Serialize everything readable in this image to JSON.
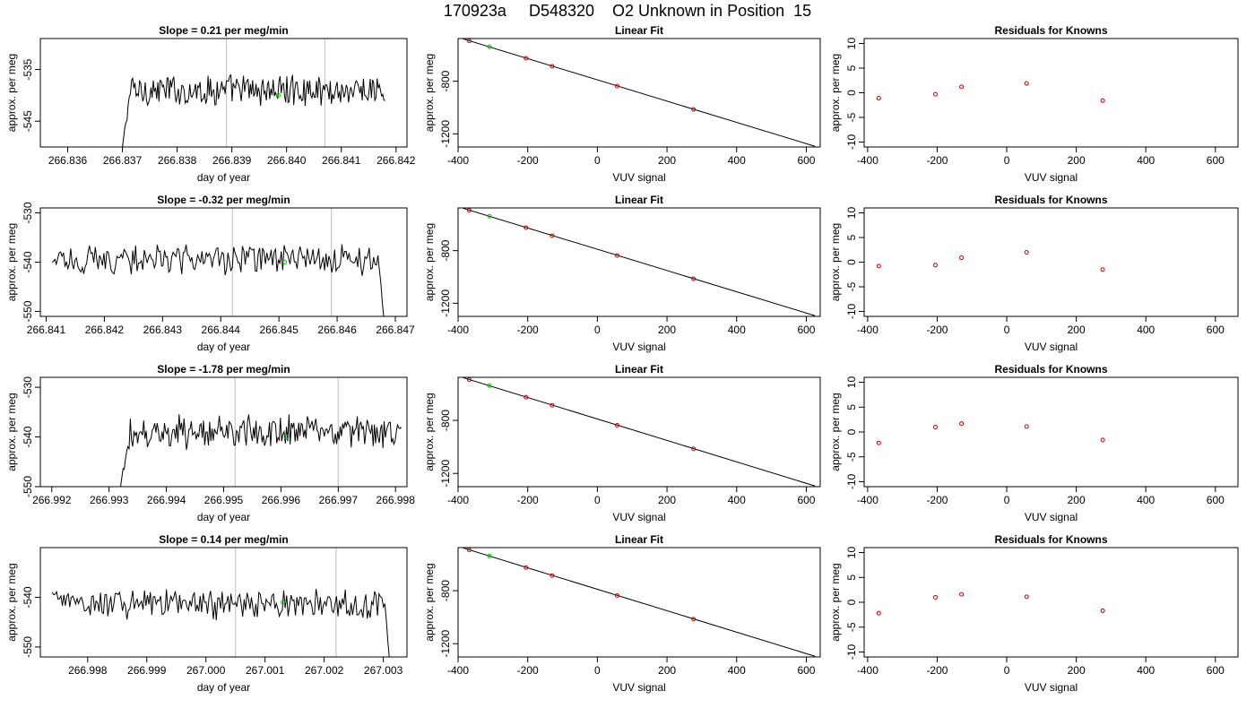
{
  "page_title": "170923a     D548320    O2 Unknown in Position  15",
  "colors": {
    "trace": "#000000",
    "vline": "#c8c8c8",
    "known_point": "#cc0000",
    "unknown_point": "#00cc00",
    "fit_line": "#000000"
  },
  "chart_data": [
    {
      "type": "line",
      "title": "Slope =  0.21  per meg/min",
      "xlabel": "day of year",
      "ylabel": "approx. per meg",
      "xlim": [
        266.8355,
        266.8422
      ],
      "ylim": [
        -550,
        -529
      ],
      "xticks": [
        266.836,
        266.837,
        266.838,
        266.839,
        266.84,
        266.841,
        266.842
      ],
      "xtick_labels": [
        "266.836",
        "266.837",
        "266.838",
        "266.839",
        "266.840",
        "266.841",
        "266.842"
      ],
      "yticks": [
        -535,
        -545
      ],
      "ytick_labels": [
        "-535",
        "-545"
      ],
      "vlines": [
        266.8389,
        266.8407
      ],
      "unknown_point": {
        "x": 266.83985,
        "y": -540.0
      },
      "series": [
        {
          "x_start": 266.837,
          "x_end": 266.8418,
          "start_y": -550,
          "level": -539.0,
          "end_y": -541.0,
          "noise": 2.6
        }
      ]
    },
    {
      "type": "scatter",
      "title": "Linear Fit",
      "xlabel": "VUV signal",
      "ylabel": "approx. per meg",
      "xlim": [
        -400,
        640
      ],
      "ylim": [
        -1300,
        -475
      ],
      "xticks": [
        -400,
        -200,
        0,
        200,
        400,
        600
      ],
      "xtick_labels": [
        "-400",
        "-200",
        "0",
        "200",
        "400",
        "600"
      ],
      "yticks": [
        -800,
        -1200
      ],
      "ytick_labels": [
        "-800",
        "-1200"
      ],
      "fit_line": {
        "x": [
          -385,
          625
        ],
        "y": [
          -478,
          -1295
        ]
      },
      "knowns": [
        {
          "x": -368,
          "y": -493
        },
        {
          "x": -205,
          "y": -625
        },
        {
          "x": -130,
          "y": -686
        },
        {
          "x": 57,
          "y": -837
        },
        {
          "x": 276,
          "y": -1014
        }
      ],
      "unknown": {
        "x": -310,
        "y": -538
      }
    },
    {
      "type": "scatter",
      "title": "Residuals for Knowns",
      "xlabel": "VUV signal",
      "ylabel": "approx. per meg",
      "xlim": [
        -410,
        665
      ],
      "ylim": [
        -11,
        11
      ],
      "xticks": [
        -400,
        -200,
        0,
        200,
        400,
        600
      ],
      "xtick_labels": [
        "-400",
        "-200",
        "0",
        "200",
        "400",
        "600"
      ],
      "yticks": [
        10,
        5,
        0,
        -5,
        -10
      ],
      "ytick_labels": [
        "10",
        "5",
        "0",
        "-5",
        "-10"
      ],
      "residuals": [
        {
          "x": -368,
          "y": -1.1
        },
        {
          "x": -205,
          "y": -0.3
        },
        {
          "x": -130,
          "y": 1.2
        },
        {
          "x": 57,
          "y": 1.9
        },
        {
          "x": 276,
          "y": -1.6
        }
      ]
    },
    {
      "type": "line",
      "title": "Slope =  -0.32  per meg/min",
      "xlabel": "day of year",
      "ylabel": "approx. per meg",
      "xlim": [
        266.8409,
        266.8472
      ],
      "ylim": [
        -551,
        -529
      ],
      "xticks": [
        266.841,
        266.842,
        266.843,
        266.844,
        266.845,
        266.846,
        266.847
      ],
      "xtick_labels": [
        "266.841",
        "266.842",
        "266.843",
        "266.844",
        "266.845",
        "266.846",
        "266.847"
      ],
      "yticks": [
        -530,
        -540,
        -550
      ],
      "ytick_labels": [
        "-530",
        "-540",
        "-550"
      ],
      "vlines": [
        266.8442,
        266.8459
      ],
      "unknown_point": {
        "x": 266.8451,
        "y": -540.0
      },
      "series": [
        {
          "x_start": 266.8411,
          "x_end": 266.8468,
          "start_y": -540,
          "level": -539.5,
          "end_y": -551,
          "noise": 2.6
        }
      ]
    },
    {
      "type": "scatter",
      "title": "Linear Fit",
      "xlabel": "VUV signal",
      "ylabel": "approx. per meg",
      "xlim": [
        -400,
        640
      ],
      "ylim": [
        -1300,
        -475
      ],
      "xticks": [
        -400,
        -200,
        0,
        200,
        400,
        600
      ],
      "xtick_labels": [
        "-400",
        "-200",
        "0",
        "200",
        "400",
        "600"
      ],
      "yticks": [
        -800,
        -1200
      ],
      "ytick_labels": [
        "-800",
        "-1200"
      ],
      "fit_line": {
        "x": [
          -385,
          625
        ],
        "y": [
          -478,
          -1295
        ]
      },
      "knowns": [
        {
          "x": -368,
          "y": -493
        },
        {
          "x": -205,
          "y": -625
        },
        {
          "x": -130,
          "y": -686
        },
        {
          "x": 57,
          "y": -837
        },
        {
          "x": 276,
          "y": -1014
        }
      ],
      "unknown": {
        "x": -310,
        "y": -538
      }
    },
    {
      "type": "scatter",
      "title": "Residuals for Knowns",
      "xlabel": "VUV signal",
      "ylabel": "approx. per meg",
      "xlim": [
        -410,
        665
      ],
      "ylim": [
        -11,
        11
      ],
      "xticks": [
        -400,
        -200,
        0,
        200,
        400,
        600
      ],
      "xtick_labels": [
        "-400",
        "-200",
        "0",
        "200",
        "400",
        "600"
      ],
      "yticks": [
        10,
        5,
        0,
        -5,
        -10
      ],
      "ytick_labels": [
        "10",
        "5",
        "0",
        "-5",
        "-10"
      ],
      "residuals": [
        {
          "x": -368,
          "y": -0.8
        },
        {
          "x": -205,
          "y": -0.6
        },
        {
          "x": -130,
          "y": 0.9
        },
        {
          "x": 57,
          "y": 2.0
        },
        {
          "x": 276,
          "y": -1.5
        }
      ]
    },
    {
      "type": "line",
      "title": "Slope =  -1.78  per meg/min",
      "xlabel": "day of year",
      "ylabel": "approx. per meg",
      "xlim": [
        266.9918,
        266.9982
      ],
      "ylim": [
        -550,
        -528
      ],
      "xticks": [
        266.992,
        266.993,
        266.994,
        266.995,
        266.996,
        266.997,
        266.998
      ],
      "xtick_labels": [
        "266.992",
        "266.993",
        "266.994",
        "266.995",
        "266.996",
        "266.997",
        "266.998"
      ],
      "yticks": [
        -530,
        -540,
        -550
      ],
      "ytick_labels": [
        "-530",
        "-540",
        "-550"
      ],
      "vlines": [
        266.9952,
        266.997
      ],
      "unknown_point": {
        "x": 266.9961,
        "y": -540.0
      },
      "series": [
        {
          "x_start": 266.9932,
          "x_end": 266.9981,
          "start_y": -550,
          "level": -539.0,
          "end_y": -538,
          "noise": 2.8
        }
      ]
    },
    {
      "type": "scatter",
      "title": "Linear Fit",
      "xlabel": "VUV signal",
      "ylabel": "approx. per meg",
      "xlim": [
        -400,
        640
      ],
      "ylim": [
        -1300,
        -475
      ],
      "xticks": [
        -400,
        -200,
        0,
        200,
        400,
        600
      ],
      "xtick_labels": [
        "-400",
        "-200",
        "0",
        "200",
        "400",
        "600"
      ],
      "yticks": [
        -800,
        -1200
      ],
      "ytick_labels": [
        "-800",
        "-1200"
      ],
      "fit_line": {
        "x": [
          -385,
          625
        ],
        "y": [
          -478,
          -1295
        ]
      },
      "knowns": [
        {
          "x": -368,
          "y": -493
        },
        {
          "x": -205,
          "y": -625
        },
        {
          "x": -130,
          "y": -686
        },
        {
          "x": 57,
          "y": -837
        },
        {
          "x": 276,
          "y": -1014
        }
      ],
      "unknown": {
        "x": -310,
        "y": -538
      }
    },
    {
      "type": "scatter",
      "title": "Residuals for Knowns",
      "xlabel": "VUV signal",
      "ylabel": "approx. per meg",
      "xlim": [
        -410,
        665
      ],
      "ylim": [
        -11,
        11
      ],
      "xticks": [
        -400,
        -200,
        0,
        200,
        400,
        600
      ],
      "xtick_labels": [
        "-400",
        "-200",
        "0",
        "200",
        "400",
        "600"
      ],
      "yticks": [
        10,
        5,
        0,
        -5,
        -10
      ],
      "ytick_labels": [
        "10",
        "5",
        "0",
        "-5",
        "-10"
      ],
      "residuals": [
        {
          "x": -368,
          "y": -2.2
        },
        {
          "x": -205,
          "y": 1.0
        },
        {
          "x": -130,
          "y": 1.7
        },
        {
          "x": 57,
          "y": 1.1
        },
        {
          "x": 276,
          "y": -1.6
        }
      ]
    },
    {
      "type": "line",
      "title": "Slope =  0.14  per meg/min",
      "xlabel": "day of year",
      "ylabel": "approx. per meg",
      "xlim": [
        266.9972,
        267.0034
      ],
      "ylim": [
        -552,
        -530
      ],
      "xticks": [
        266.998,
        266.999,
        267.0,
        267.001,
        267.002,
        267.003
      ],
      "xtick_labels": [
        "266.998",
        "266.999",
        "267.000",
        "267.001",
        "267.002",
        "267.003"
      ],
      "yticks": [
        -540,
        -550
      ],
      "ytick_labels": [
        "-540",
        "-550"
      ],
      "vlines": [
        267.0005,
        267.0022
      ],
      "unknown_point": {
        "x": 267.0013,
        "y": -541.0
      },
      "series": [
        {
          "x_start": 266.9974,
          "x_end": 267.0031,
          "start_y": -539,
          "level": -541.5,
          "end_y": -552,
          "noise": 2.6
        }
      ]
    },
    {
      "type": "scatter",
      "title": "Linear Fit",
      "xlabel": "VUV signal",
      "ylabel": "approx. per meg",
      "xlim": [
        -400,
        640
      ],
      "ylim": [
        -1300,
        -475
      ],
      "xticks": [
        -400,
        -200,
        0,
        200,
        400,
        600
      ],
      "xtick_labels": [
        "-400",
        "-200",
        "0",
        "200",
        "400",
        "600"
      ],
      "yticks": [
        -800,
        -1200
      ],
      "ytick_labels": [
        "-800",
        "-1200"
      ],
      "fit_line": {
        "x": [
          -385,
          625
        ],
        "y": [
          -478,
          -1295
        ]
      },
      "knowns": [
        {
          "x": -368,
          "y": -493
        },
        {
          "x": -205,
          "y": -625
        },
        {
          "x": -130,
          "y": -686
        },
        {
          "x": 57,
          "y": -837
        },
        {
          "x": 276,
          "y": -1014
        }
      ],
      "unknown": {
        "x": -310,
        "y": -538
      }
    },
    {
      "type": "scatter",
      "title": "Residuals for Knowns",
      "xlabel": "VUV signal",
      "ylabel": "approx. per meg",
      "xlim": [
        -410,
        665
      ],
      "ylim": [
        -11,
        11
      ],
      "xticks": [
        -400,
        -200,
        0,
        200,
        400,
        600
      ],
      "xtick_labels": [
        "-400",
        "-200",
        "0",
        "200",
        "400",
        "600"
      ],
      "yticks": [
        10,
        5,
        0,
        -5,
        -10
      ],
      "ytick_labels": [
        "10",
        "5",
        "0",
        "-5",
        "-10"
      ],
      "residuals": [
        {
          "x": -368,
          "y": -2.2
        },
        {
          "x": -205,
          "y": 1.0
        },
        {
          "x": -130,
          "y": 1.6
        },
        {
          "x": 57,
          "y": 1.1
        },
        {
          "x": 276,
          "y": -1.7
        }
      ]
    }
  ]
}
